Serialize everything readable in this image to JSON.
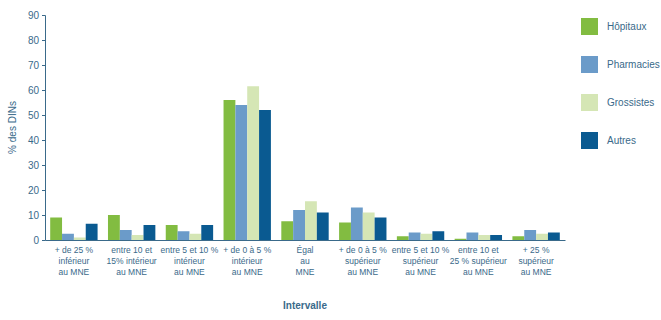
{
  "chart_data": {
    "type": "bar",
    "y_label": "% des DINs",
    "x_label": "Intervalle",
    "categories": [
      "+ de 25 %\ninférieur\nau MNE",
      "entre 10 et\n15% intérieur\nau MNE",
      "entre 5 et 10 %\nintérieur\nau MNE",
      "+ de 0 à 5 %\nintérieur\nau MNE",
      "Égal\nau\nMNE",
      "+ de 0 à 5 %\nsupérieur\nau MNE",
      "entre 5 et 10 %\nsupérieur\nau MNE",
      "entre 10 et\n25 % supérieur\nau MNE",
      "+ 25 %\nsupérieur\nau MNE"
    ],
    "series": [
      {
        "name": "Hôpitaux",
        "color": "#82bc41",
        "values": [
          9,
          10,
          6,
          56,
          7.5,
          7,
          1.5,
          0.5,
          1.5
        ]
      },
      {
        "name": "Pharmacies",
        "color": "#6b9bc9",
        "values": [
          2.5,
          4,
          3.5,
          54,
          12,
          13,
          3,
          3,
          4
        ]
      },
      {
        "name": "Grossistes",
        "color": "#d5e6b5",
        "values": [
          1,
          2,
          2.5,
          61.5,
          15.5,
          11,
          2.5,
          2,
          2.5
        ]
      },
      {
        "name": "Autres",
        "color": "#0a5a91",
        "values": [
          6.5,
          6,
          6,
          52,
          11,
          9,
          3.5,
          2,
          3
        ]
      }
    ],
    "ylim": [
      0,
      90
    ],
    "yticks": [
      0,
      10,
      20,
      30,
      40,
      50,
      60,
      70,
      80,
      90
    ],
    "grid": false,
    "legend": "right"
  }
}
